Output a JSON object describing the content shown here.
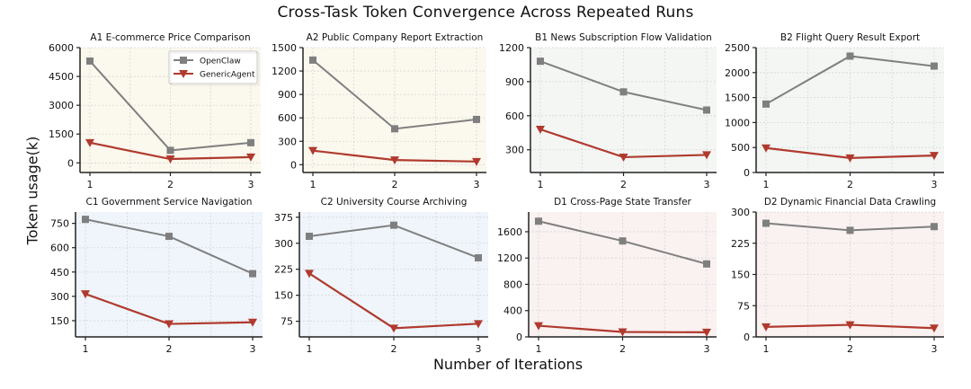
{
  "figure": {
    "title": "Cross-Task Token Convergence Across Repeated Runs",
    "ylabel": "Token  usage(k)",
    "xlabel": "Number of Iterations",
    "colors": {
      "openclaw": "#7f7f7f",
      "genericagent": "#b03a2e",
      "bg_A": "#fbf8ee",
      "bg_B": "#f3f6f3",
      "bg_C": "#eff5fb",
      "bg_D": "#faf1f1",
      "grid": "#d6d6d6",
      "axis": "#222222"
    }
  },
  "legend": {
    "items": [
      {
        "label": "OpenClaw",
        "marker": "square",
        "color": "#7f7f7f"
      },
      {
        "label": "GenericAgent",
        "marker": "triangle-down",
        "color": "#b03a2e"
      }
    ]
  },
  "chart_data": [
    {
      "type": "line",
      "title": "A1 E-commerce Price Comparison",
      "group": "A",
      "x": [
        1,
        2,
        3
      ],
      "xlabel": "Number of Iterations",
      "ylabel": "Token usage(k)",
      "ylim": [
        -500,
        6000
      ],
      "yticks": [
        0,
        1500,
        3000,
        4500,
        6000
      ],
      "series": [
        {
          "name": "OpenClaw",
          "values": [
            5300,
            650,
            1050
          ]
        },
        {
          "name": "GenericAgent",
          "values": [
            1050,
            200,
            300
          ]
        }
      ],
      "legend_position": "upper right",
      "grid": true
    },
    {
      "type": "line",
      "title": "A2 Public Company Report Extraction",
      "group": "A",
      "x": [
        1,
        2,
        3
      ],
      "ylim": [
        -100,
        1500
      ],
      "yticks": [
        0,
        300,
        600,
        900,
        1200,
        1500
      ],
      "series": [
        {
          "name": "OpenClaw",
          "values": [
            1340,
            460,
            580
          ]
        },
        {
          "name": "GenericAgent",
          "values": [
            180,
            60,
            40
          ]
        }
      ],
      "grid": true
    },
    {
      "type": "line",
      "title": "B1 News Subscription Flow Validation",
      "group": "B",
      "x": [
        1,
        2,
        3
      ],
      "ylim": [
        100,
        1200
      ],
      "yticks": [
        300,
        600,
        900,
        1200
      ],
      "series": [
        {
          "name": "OpenClaw",
          "values": [
            1080,
            810,
            650
          ]
        },
        {
          "name": "GenericAgent",
          "values": [
            480,
            235,
            255
          ]
        }
      ],
      "grid": true
    },
    {
      "type": "line",
      "title": "B2 Flight Query Result Export",
      "group": "B",
      "x": [
        1,
        2,
        3
      ],
      "ylim": [
        0,
        2500
      ],
      "yticks": [
        0,
        500,
        1000,
        1500,
        2000,
        2500
      ],
      "series": [
        {
          "name": "OpenClaw",
          "values": [
            1370,
            2330,
            2130
          ]
        },
        {
          "name": "GenericAgent",
          "values": [
            490,
            290,
            340
          ]
        }
      ],
      "grid": true
    },
    {
      "type": "line",
      "title": "C1 Government Service Navigation",
      "group": "C",
      "x": [
        1,
        2,
        3
      ],
      "ylim": [
        50,
        820
      ],
      "yticks": [
        150,
        300,
        450,
        600,
        750
      ],
      "series": [
        {
          "name": "OpenClaw",
          "values": [
            775,
            670,
            440
          ]
        },
        {
          "name": "GenericAgent",
          "values": [
            315,
            130,
            140
          ]
        }
      ],
      "grid": true
    },
    {
      "type": "line",
      "title": "C2 University Course Archiving",
      "group": "C",
      "x": [
        1,
        2,
        3
      ],
      "ylim": [
        30,
        390
      ],
      "yticks": [
        75,
        150,
        225,
        300,
        375
      ],
      "series": [
        {
          "name": "OpenClaw",
          "values": [
            320,
            352,
            258
          ]
        },
        {
          "name": "GenericAgent",
          "values": [
            213,
            55,
            68
          ]
        }
      ],
      "grid": true
    },
    {
      "type": "line",
      "title": "D1 Cross-Page State Transfer",
      "group": "D",
      "x": [
        1,
        2,
        3
      ],
      "ylim": [
        0,
        1900
      ],
      "yticks": [
        0,
        400,
        800,
        1200,
        1600
      ],
      "series": [
        {
          "name": "OpenClaw",
          "values": [
            1760,
            1460,
            1110
          ]
        },
        {
          "name": "GenericAgent",
          "values": [
            170,
            75,
            70
          ]
        }
      ],
      "grid": true
    },
    {
      "type": "line",
      "title": "D2 Dynamic Financial Data Crawling",
      "group": "D",
      "x": [
        1,
        2,
        3
      ],
      "ylim": [
        0,
        300
      ],
      "yticks": [
        0,
        75,
        150,
        225,
        300
      ],
      "series": [
        {
          "name": "OpenClaw",
          "values": [
            273,
            256,
            265
          ]
        },
        {
          "name": "GenericAgent",
          "values": [
            24,
            29,
            21
          ]
        }
      ],
      "grid": true
    }
  ]
}
